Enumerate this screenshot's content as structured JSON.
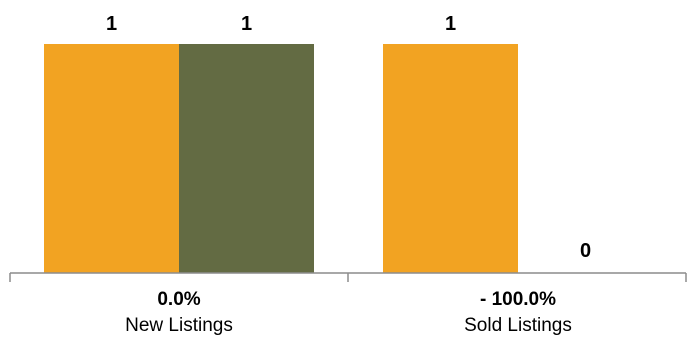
{
  "chart_data": {
    "type": "bar",
    "categories": [
      "New Listings",
      "Sold Listings"
    ],
    "change_labels": [
      "0.0%",
      "- 100.0%"
    ],
    "series": [
      {
        "values": [
          1,
          1
        ],
        "color": "#F2A322"
      },
      {
        "values": [
          1,
          0
        ],
        "color": "#636B43"
      }
    ],
    "ylim": [
      0,
      1
    ],
    "grid": false,
    "legend": "none",
    "axis_color": "#8C8C8C"
  }
}
